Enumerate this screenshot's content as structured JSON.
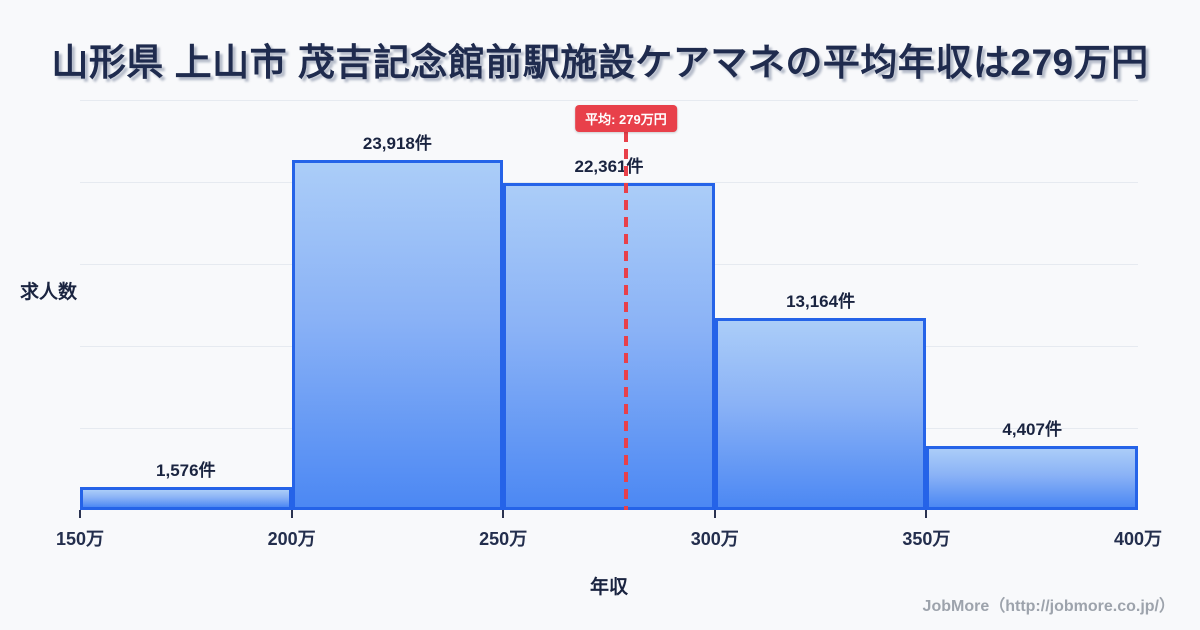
{
  "title": "山形県 上山市 茂吉記念館前駅施設ケアマネの平均年収は279万円",
  "y_axis_label": "求人数",
  "x_axis_label": "年収",
  "footer": "JobMore（http://jobmore.co.jp/）",
  "average": {
    "badge_label": "平均: 279万円",
    "value_man_yen": 279
  },
  "colors": {
    "background": "#f8f9fb",
    "title_text": "#1f2b4e",
    "bar_gradient_top": "#abcdf8",
    "bar_gradient_bottom": "#4c88f3",
    "bar_border": "#2563e8",
    "average_red": "#e8404a",
    "gridline": "#e6eaf0",
    "footer_gray": "#9da3ac"
  },
  "chart_data": {
    "type": "bar",
    "subtype": "histogram",
    "title": "山形県 上山市 茂吉記念館前駅施設ケアマネの平均年収は279万円",
    "xlabel": "年収",
    "ylabel": "求人数",
    "categories": [
      "150万-200万",
      "200万-250万",
      "250万-300万",
      "300万-350万",
      "350万-400万"
    ],
    "values": [
      1576,
      23918,
      22361,
      13164,
      4407
    ],
    "value_labels": [
      "1,576件",
      "23,918件",
      "22,361件",
      "13,164件",
      "4,407件"
    ],
    "x_tick_labels": [
      "150万",
      "200万",
      "250万",
      "300万",
      "350万",
      "400万"
    ],
    "xlim_man_yen": [
      150,
      400
    ],
    "ylim": [
      0,
      28050
    ],
    "average_value_man_yen": 279,
    "average_line_label": "平均: 279万円",
    "grid": "horizontal, unlabeled, 5 intervals",
    "legend": "none"
  }
}
